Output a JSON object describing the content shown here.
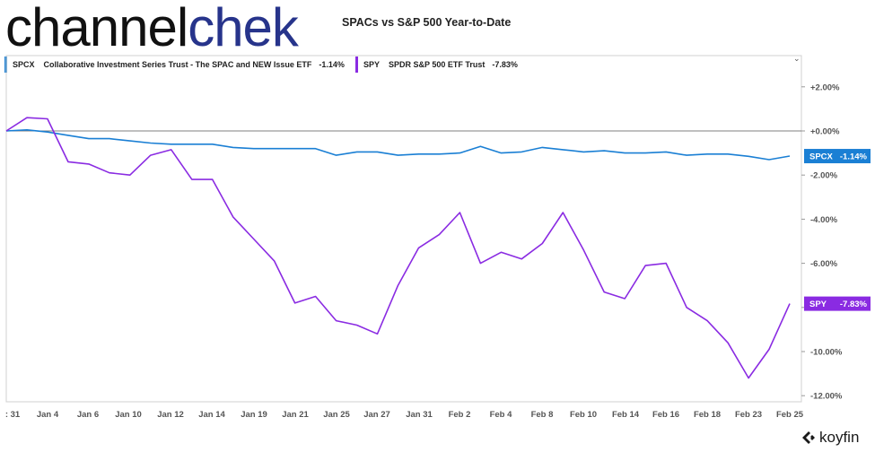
{
  "brand": {
    "part1": "channel",
    "part2": "chek"
  },
  "footer": {
    "logo_text": "koyfin"
  },
  "colors": {
    "spcx": "#1a7fd4",
    "spy": "#8a2be2",
    "zero_line": "#555555"
  },
  "chart_data": {
    "type": "line",
    "title": "SPACs vs S&P 500 Year-to-Date",
    "xlabel": "",
    "ylabel": "",
    "ylim": [
      -12,
      3
    ],
    "yticks": [
      2,
      0,
      -2,
      -4,
      -6,
      -8,
      -10,
      -12
    ],
    "ytick_labels": [
      "+2.00%",
      "+0.00%",
      "-2.00%",
      "-4.00%",
      "-6.00%",
      "-8.00%",
      "-10.00%",
      "-12.00%"
    ],
    "x_tick_labels": [
      ": 31",
      "Jan 4",
      "Jan 6",
      "Jan 10",
      "Jan 12",
      "Jan 14",
      "Jan 19",
      "Jan 21",
      "Jan 25",
      "Jan 27",
      "Jan 31",
      "Feb 2",
      "Feb 4",
      "Feb 8",
      "Feb 10",
      "Feb 14",
      "Feb 16",
      "Feb 18",
      "Feb 23",
      "Feb 25"
    ],
    "grid": false,
    "legend_position": "top",
    "series": [
      {
        "ticker": "SPCX",
        "name": "Collaborative Investment Series Trust - The SPAC and NEW Issue ETF",
        "last_label": "-1.14%",
        "values": [
          0.0,
          0.05,
          -0.05,
          -0.2,
          -0.35,
          -0.35,
          -0.45,
          -0.55,
          -0.6,
          -0.6,
          -0.6,
          -0.75,
          -0.8,
          -0.8,
          -0.8,
          -0.8,
          -1.1,
          -0.95,
          -0.95,
          -1.1,
          -1.05,
          -1.05,
          -1.0,
          -0.7,
          -1.0,
          -0.95,
          -0.75,
          -0.85,
          -0.95,
          -0.9,
          -1.0,
          -1.0,
          -0.95,
          -1.1,
          -1.05,
          -1.05,
          -1.15,
          -1.3,
          -1.14
        ]
      },
      {
        "ticker": "SPY",
        "name": "SPDR S&P 500 ETF Trust",
        "last_label": "-7.83%",
        "values": [
          0.0,
          0.6,
          0.55,
          -1.4,
          -1.5,
          -1.9,
          -2.0,
          -1.1,
          -0.85,
          -2.2,
          -2.2,
          -3.9,
          -4.9,
          -5.9,
          -7.8,
          -7.5,
          -8.6,
          -8.8,
          -9.2,
          -7.0,
          -5.3,
          -4.7,
          -3.7,
          -6.0,
          -5.5,
          -5.8,
          -5.1,
          -3.7,
          -5.4,
          -7.3,
          -7.6,
          -6.1,
          -6.0,
          -8.0,
          -8.6,
          -9.6,
          -11.2,
          -9.9,
          -7.83
        ]
      }
    ]
  }
}
